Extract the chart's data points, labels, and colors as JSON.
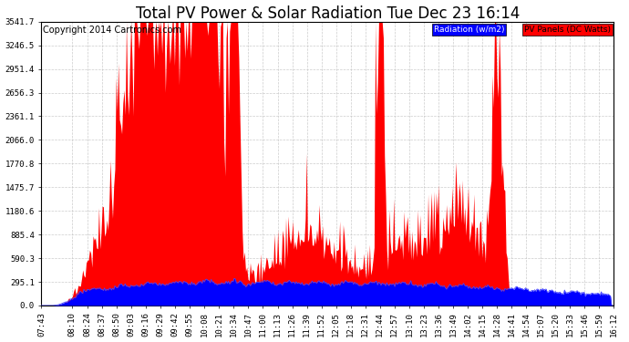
{
  "title": "Total PV Power & Solar Radiation Tue Dec 23 16:14",
  "copyright": "Copyright 2014 Cartronics.com",
  "legend_radiation": "Radiation (w/m2)",
  "legend_pv": "PV Panels (DC Watts)",
  "ylabel_max": 3541.7,
  "yticks": [
    0.0,
    295.1,
    590.3,
    885.4,
    1180.6,
    1475.7,
    1770.8,
    2066.0,
    2361.1,
    2656.3,
    2951.4,
    3246.5,
    3541.7
  ],
  "color_radiation_fill": "#0000ff",
  "color_pv_fill": "#ff0000",
  "color_radiation_line": "#0000cc",
  "color_background": "#ffffff",
  "color_grid": "#c0c0c0",
  "title_fontsize": 12,
  "copyright_fontsize": 7,
  "tick_fontsize": 6.5,
  "xtick_labels": [
    "07:43",
    "08:10",
    "08:24",
    "08:37",
    "08:50",
    "09:03",
    "09:16",
    "09:29",
    "09:42",
    "09:55",
    "10:08",
    "10:21",
    "10:34",
    "10:47",
    "11:00",
    "11:13",
    "11:26",
    "11:39",
    "11:52",
    "12:05",
    "12:18",
    "12:31",
    "12:44",
    "12:57",
    "13:10",
    "13:23",
    "13:36",
    "13:49",
    "14:02",
    "14:15",
    "14:28",
    "14:41",
    "14:54",
    "15:07",
    "15:20",
    "15:33",
    "15:46",
    "15:59",
    "16:12"
  ]
}
